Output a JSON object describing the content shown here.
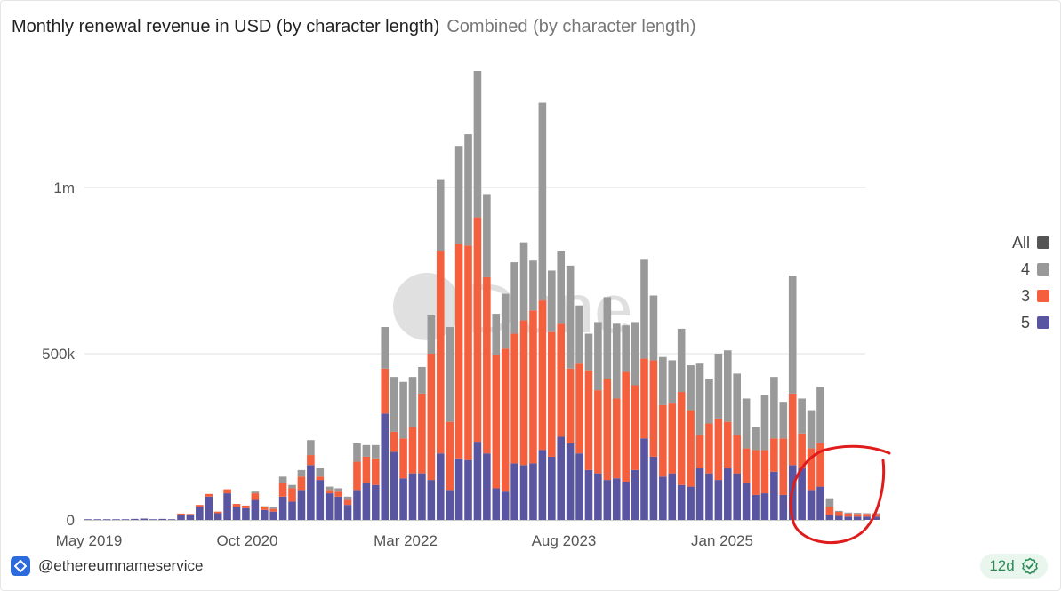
{
  "header": {
    "title": "Monthly renewal revenue in USD (by character length)",
    "subtitle": "Combined (by character length)"
  },
  "footer": {
    "handle": "@ethereumnameservice",
    "freshness": "12d",
    "logo_icon": "dune-logo-icon",
    "badge_icon": "check-badge-icon"
  },
  "watermark": "Dune",
  "chart_data": {
    "type": "bar",
    "stacked": true,
    "x_start": "2019-05",
    "x_interval": "month",
    "xticks": [
      "May 2019",
      "Oct 2020",
      "Mar 2022",
      "Aug 2023",
      "Jan 2025"
    ],
    "yticks": [
      {
        "value": 0,
        "label": "0"
      },
      {
        "value": 500000,
        "label": "500k"
      },
      {
        "value": 1000000,
        "label": "1m"
      }
    ],
    "ylim": [
      0,
      1350000
    ],
    "grid": true,
    "legend_position": "right",
    "legend": [
      {
        "name": "All",
        "color": "#555555"
      },
      {
        "name": "4",
        "color": "#999999"
      },
      {
        "name": "3",
        "color": "#f4603e"
      },
      {
        "name": "5",
        "color": "#5a55a0"
      }
    ],
    "series": [
      {
        "name": "5",
        "color": "#5a55a0",
        "values": [
          2000,
          2000,
          2000,
          2000,
          2000,
          3000,
          4000,
          2000,
          3000,
          2000,
          16000,
          15000,
          40000,
          70000,
          20000,
          80000,
          40000,
          35000,
          60000,
          30000,
          25000,
          70000,
          55000,
          90000,
          165000,
          120000,
          80000,
          70000,
          45000,
          90000,
          110000,
          105000,
          320000,
          205000,
          125000,
          140000,
          140000,
          120000,
          200000,
          90000,
          185000,
          180000,
          235000,
          200000,
          95000,
          85000,
          170000,
          165000,
          170000,
          210000,
          190000,
          250000,
          230000,
          200000,
          150000,
          140000,
          120000,
          125000,
          115000,
          150000,
          245000,
          190000,
          130000,
          140000,
          105000,
          100000,
          155000,
          140000,
          120000,
          155000,
          140000,
          110000,
          75000,
          80000,
          145000,
          75000,
          165000,
          155000,
          90000,
          100000,
          15000,
          12000,
          10000,
          10000,
          10000,
          10000
        ]
      },
      {
        "name": "3",
        "color": "#f4603e",
        "values": [
          0,
          0,
          0,
          0,
          0,
          0,
          0,
          0,
          0,
          0,
          3000,
          3000,
          5000,
          8000,
          5000,
          12000,
          8000,
          8000,
          20000,
          8000,
          8000,
          40000,
          40000,
          40000,
          30000,
          10000,
          10000,
          15000,
          15000,
          85000,
          80000,
          80000,
          135000,
          60000,
          120000,
          140000,
          240000,
          380000,
          610000,
          205000,
          645000,
          645000,
          675000,
          530000,
          400000,
          430000,
          390000,
          435000,
          460000,
          450000,
          375000,
          340000,
          225000,
          270000,
          300000,
          250000,
          305000,
          240000,
          330000,
          255000,
          240000,
          290000,
          215000,
          210000,
          280000,
          230000,
          100000,
          150000,
          185000,
          140000,
          115000,
          105000,
          135000,
          130000,
          100000,
          170000,
          215000,
          105000,
          125000,
          130000,
          25000,
          12000,
          9000,
          8000,
          8000,
          8000
        ]
      },
      {
        "name": "4",
        "color": "#999999",
        "values": [
          0,
          0,
          0,
          0,
          0,
          0,
          0,
          0,
          0,
          0,
          0,
          0,
          0,
          0,
          0,
          0,
          0,
          0,
          5000,
          3000,
          5000,
          20000,
          10000,
          20000,
          45000,
          25000,
          10000,
          10000,
          10000,
          55000,
          35000,
          40000,
          125000,
          165000,
          170000,
          150000,
          80000,
          115000,
          215000,
          285000,
          295000,
          335000,
          440000,
          250000,
          125000,
          165000,
          215000,
          235000,
          150000,
          595000,
          185000,
          220000,
          310000,
          175000,
          110000,
          205000,
          245000,
          225000,
          140000,
          190000,
          300000,
          195000,
          145000,
          130000,
          190000,
          135000,
          215000,
          135000,
          195000,
          215000,
          185000,
          150000,
          70000,
          165000,
          185000,
          110000,
          355000,
          105000,
          115000,
          170000,
          25000,
          3000,
          3000,
          3000,
          2000,
          2000
        ]
      }
    ]
  }
}
